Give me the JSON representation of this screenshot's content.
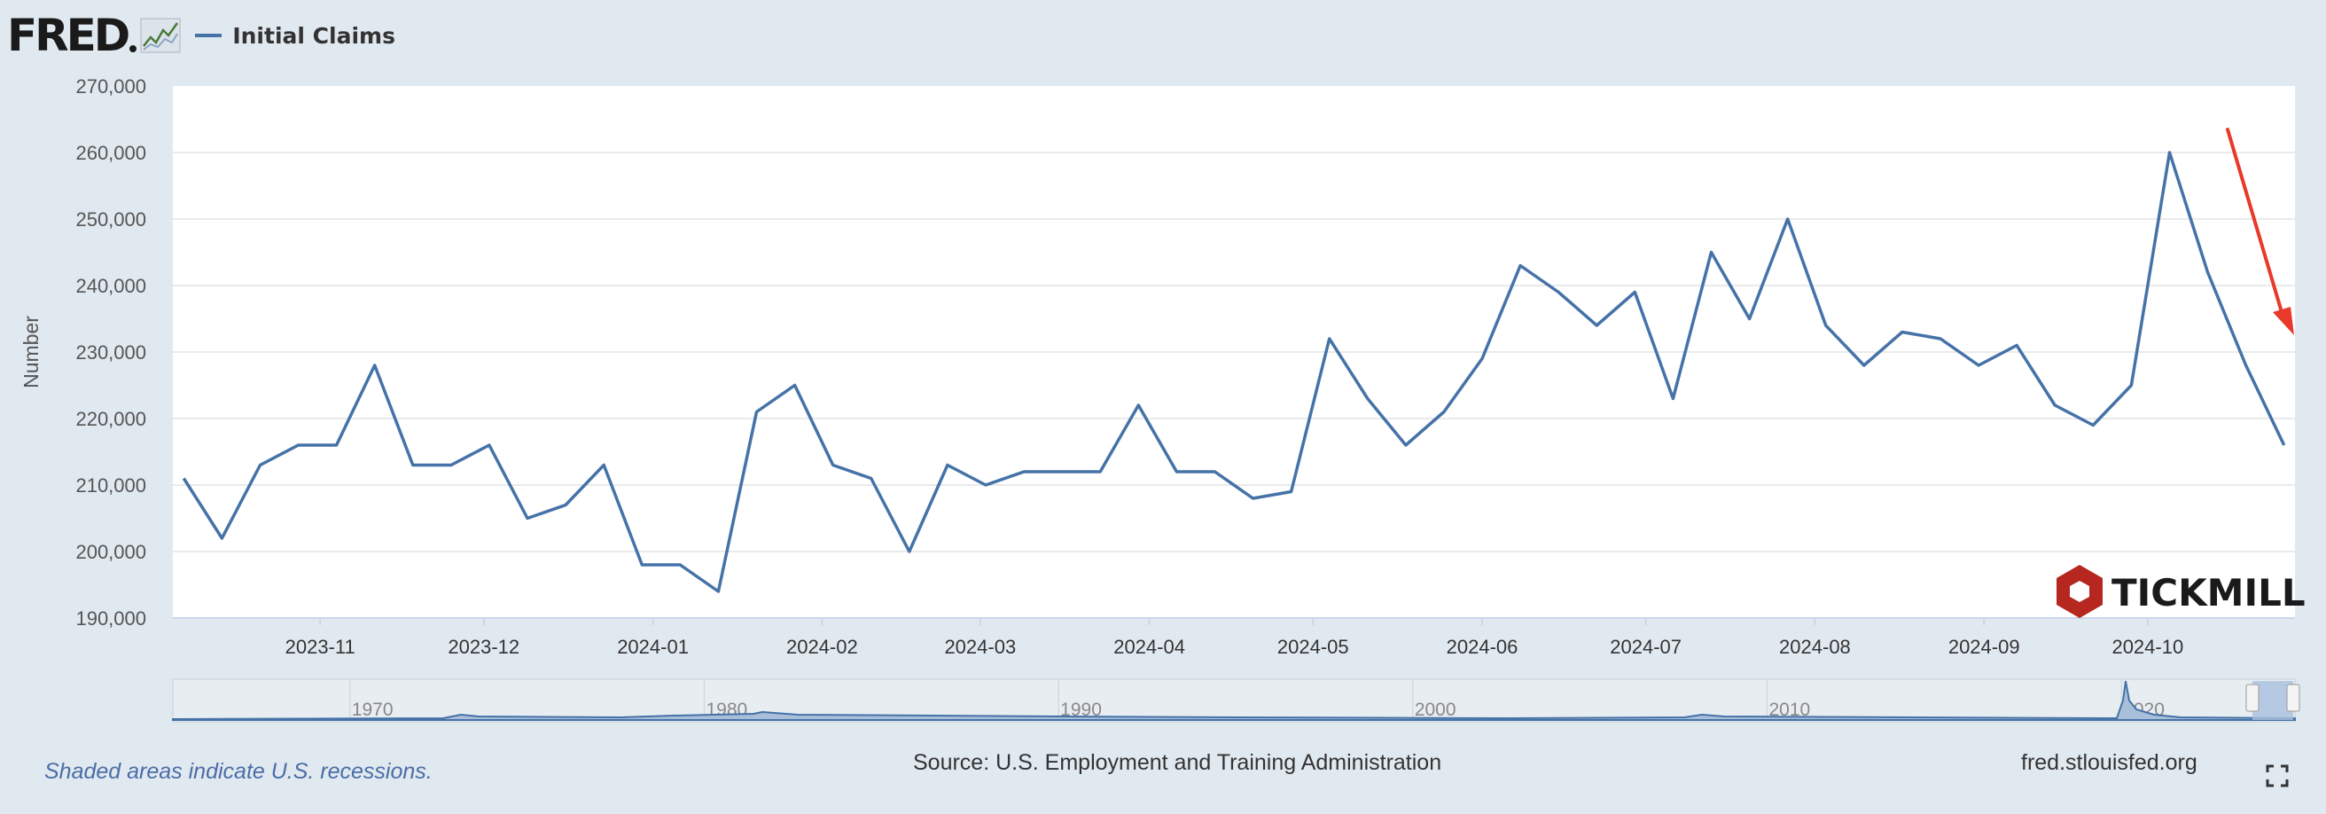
{
  "header": {
    "logo_text": "FRED",
    "series_label": "Initial Claims"
  },
  "chart_data": {
    "type": "line",
    "ylabel": "Number",
    "ylim": [
      190000,
      270000
    ],
    "yticks": [
      190000,
      200000,
      210000,
      220000,
      230000,
      240000,
      250000,
      260000,
      270000
    ],
    "ytick_labels": [
      "190,000",
      "200,000",
      "210,000",
      "220,000",
      "230,000",
      "240,000",
      "250,000",
      "260,000",
      "270,000"
    ],
    "xlim": [
      "2023-10-05",
      "2024-10-28"
    ],
    "xticks": [
      "2023-11-01",
      "2023-12-01",
      "2024-01-01",
      "2024-02-01",
      "2024-03-01",
      "2024-04-01",
      "2024-05-01",
      "2024-06-01",
      "2024-07-01",
      "2024-08-01",
      "2024-09-01",
      "2024-10-01"
    ],
    "xtick_labels": [
      "2023-11",
      "2023-12",
      "2024-01",
      "2024-02",
      "2024-03",
      "2024-04",
      "2024-05",
      "2024-06",
      "2024-07",
      "2024-08",
      "2024-09",
      "2024-10"
    ],
    "series": [
      {
        "name": "Initial Claims",
        "color": "#4572a7",
        "x": [
          "2023-10-07",
          "2023-10-14",
          "2023-10-21",
          "2023-10-28",
          "2023-11-04",
          "2023-11-11",
          "2023-11-18",
          "2023-11-25",
          "2023-12-02",
          "2023-12-09",
          "2023-12-16",
          "2023-12-23",
          "2023-12-30",
          "2024-01-06",
          "2024-01-13",
          "2024-01-20",
          "2024-01-27",
          "2024-02-03",
          "2024-02-10",
          "2024-02-17",
          "2024-02-24",
          "2024-03-02",
          "2024-03-09",
          "2024-03-16",
          "2024-03-23",
          "2024-03-30",
          "2024-04-06",
          "2024-04-13",
          "2024-04-20",
          "2024-04-27",
          "2024-05-04",
          "2024-05-11",
          "2024-05-18",
          "2024-05-25",
          "2024-06-01",
          "2024-06-08",
          "2024-06-15",
          "2024-06-22",
          "2024-06-29",
          "2024-07-06",
          "2024-07-13",
          "2024-07-20",
          "2024-07-27",
          "2024-08-03",
          "2024-08-10",
          "2024-08-17",
          "2024-08-24",
          "2024-08-31",
          "2024-09-07",
          "2024-09-14",
          "2024-09-21",
          "2024-09-28",
          "2024-10-05",
          "2024-10-12",
          "2024-10-19",
          "2024-10-26"
        ],
        "values": [
          211000,
          202000,
          213000,
          216000,
          216000,
          228000,
          213000,
          213000,
          216000,
          205000,
          207000,
          213000,
          198000,
          198000,
          194000,
          221000,
          225000,
          213000,
          211000,
          200000,
          213000,
          210000,
          212000,
          212000,
          212000,
          222000,
          212000,
          212000,
          208000,
          209000,
          232000,
          223000,
          216000,
          221000,
          229000,
          243000,
          239000,
          234000,
          239000,
          223000,
          245000,
          235000,
          250000,
          234000,
          228000,
          233000,
          232000,
          228000,
          231000,
          222000,
          219000,
          225000,
          260000,
          242000,
          228000,
          216000
        ]
      }
    ],
    "navigator_ticks": [
      "1970",
      "1980",
      "1990",
      "2000",
      "2010",
      "2020"
    ],
    "grid": true,
    "legend": "top-left"
  },
  "annotation": {
    "arrow_color": "#e8392a"
  },
  "watermark": {
    "text": "TICKMILL"
  },
  "footer": {
    "note": "Shaded areas indicate U.S. recessions.",
    "source": "Source: U.S. Employment and Training Administration",
    "site": "fred.stlouisfed.org"
  }
}
